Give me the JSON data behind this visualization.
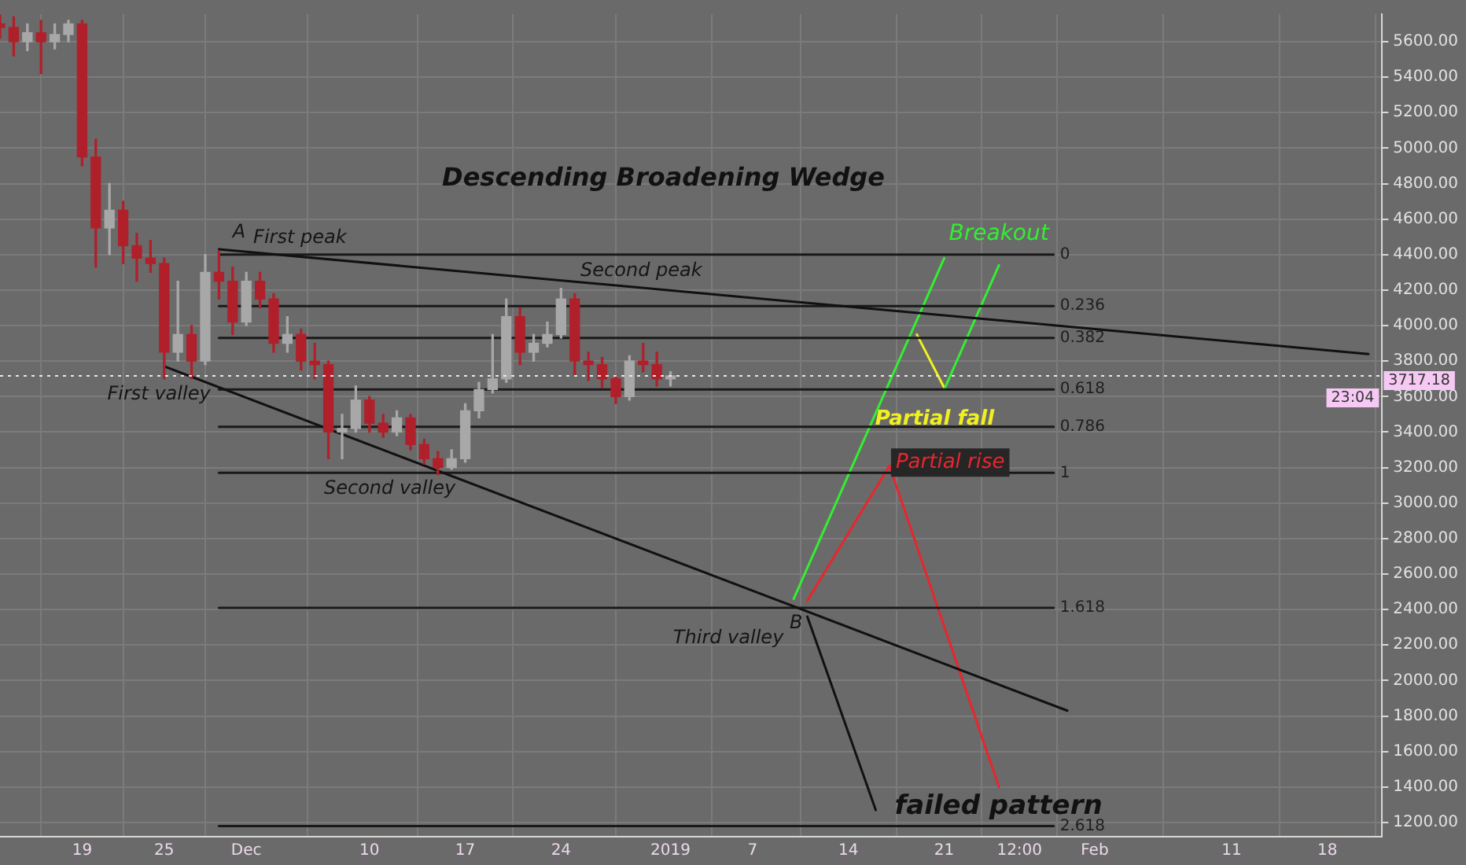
{
  "chart_data": {
    "type": "candlestick",
    "title": "Descending Broadening Wedge",
    "x": [
      "2018-11-13",
      "2018-11-14",
      "2018-11-15",
      "2018-11-16",
      "2018-11-17",
      "2018-11-18",
      "2018-11-19",
      "2018-11-20",
      "2018-11-21",
      "2018-11-22",
      "2018-11-23",
      "2018-11-24",
      "2018-11-25",
      "2018-11-26",
      "2018-11-27",
      "2018-11-28",
      "2018-11-29",
      "2018-11-30",
      "2018-12-01",
      "2018-12-02",
      "2018-12-03",
      "2018-12-04",
      "2018-12-05",
      "2018-12-06",
      "2018-12-07",
      "2018-12-08",
      "2018-12-09",
      "2018-12-10",
      "2018-12-11",
      "2018-12-12",
      "2018-12-13",
      "2018-12-14",
      "2018-12-15",
      "2018-12-16",
      "2018-12-17",
      "2018-12-18",
      "2018-12-19",
      "2018-12-20",
      "2018-12-21",
      "2018-12-22",
      "2018-12-23",
      "2018-12-24",
      "2018-12-25",
      "2018-12-26",
      "2018-12-27",
      "2018-12-28",
      "2018-12-29",
      "2018-12-30",
      "2018-12-31",
      "2019-01-01"
    ],
    "ohlc": [
      [
        5700,
        5750,
        5620,
        5680
      ],
      [
        5680,
        5740,
        5520,
        5600
      ],
      [
        5600,
        5700,
        5550,
        5650
      ],
      [
        5650,
        5720,
        5420,
        5600
      ],
      [
        5600,
        5700,
        5560,
        5640
      ],
      [
        5640,
        5720,
        5600,
        5700
      ],
      [
        5700,
        5720,
        4900,
        4950
      ],
      [
        4950,
        5050,
        4330,
        4550
      ],
      [
        4550,
        4800,
        4400,
        4650
      ],
      [
        4650,
        4700,
        4350,
        4450
      ],
      [
        4450,
        4520,
        4250,
        4380
      ],
      [
        4380,
        4480,
        4300,
        4350
      ],
      [
        4350,
        4380,
        3700,
        3850
      ],
      [
        3850,
        4250,
        3800,
        3950
      ],
      [
        3950,
        4000,
        3700,
        3800
      ],
      [
        3800,
        4400,
        3780,
        4300
      ],
      [
        4300,
        4420,
        4150,
        4250
      ],
      [
        4250,
        4330,
        3950,
        4020
      ],
      [
        4020,
        4300,
        4000,
        4250
      ],
      [
        4250,
        4300,
        4100,
        4150
      ],
      [
        4150,
        4180,
        3850,
        3900
      ],
      [
        3900,
        4050,
        3850,
        3950
      ],
      [
        3950,
        3980,
        3750,
        3800
      ],
      [
        3800,
        3900,
        3700,
        3780
      ],
      [
        3780,
        3800,
        3250,
        3400
      ],
      [
        3400,
        3500,
        3250,
        3420
      ],
      [
        3420,
        3660,
        3400,
        3580
      ],
      [
        3580,
        3600,
        3400,
        3450
      ],
      [
        3450,
        3500,
        3370,
        3400
      ],
      [
        3400,
        3520,
        3380,
        3480
      ],
      [
        3480,
        3500,
        3300,
        3330
      ],
      [
        3330,
        3360,
        3220,
        3250
      ],
      [
        3250,
        3290,
        3160,
        3200
      ],
      [
        3200,
        3300,
        3190,
        3250
      ],
      [
        3250,
        3560,
        3230,
        3520
      ],
      [
        3520,
        3680,
        3480,
        3640
      ],
      [
        3640,
        3950,
        3620,
        3700
      ],
      [
        3700,
        4150,
        3680,
        4050
      ],
      [
        4050,
        4100,
        3780,
        3850
      ],
      [
        3850,
        3950,
        3800,
        3900
      ],
      [
        3900,
        4020,
        3880,
        3950
      ],
      [
        3950,
        4210,
        3930,
        4150
      ],
      [
        4150,
        4180,
        3720,
        3800
      ],
      [
        3800,
        3850,
        3690,
        3780
      ],
      [
        3780,
        3820,
        3650,
        3700
      ],
      [
        3700,
        3720,
        3560,
        3600
      ],
      [
        3600,
        3830,
        3580,
        3800
      ],
      [
        3800,
        3900,
        3740,
        3780
      ],
      [
        3780,
        3850,
        3660,
        3700
      ],
      [
        3700,
        3740,
        3660,
        3717
      ]
    ],
    "colors": [
      "#b0202a",
      "#b0202a",
      "#a8a8a8",
      "#b0202a",
      "#a8a8a8",
      "#a8a8a8",
      "#b0202a",
      "#b0202a",
      "#a8a8a8",
      "#b0202a",
      "#b0202a",
      "#b0202a",
      "#b0202a",
      "#a8a8a8",
      "#b0202a",
      "#a8a8a8",
      "#b0202a",
      "#b0202a",
      "#a8a8a8",
      "#b0202a",
      "#b0202a",
      "#a8a8a8",
      "#b0202a",
      "#b0202a",
      "#b0202a",
      "#a8a8a8",
      "#a8a8a8",
      "#b0202a",
      "#b0202a",
      "#a8a8a8",
      "#b0202a",
      "#b0202a",
      "#b0202a",
      "#a8a8a8",
      "#a8a8a8",
      "#a8a8a8",
      "#a8a8a8",
      "#a8a8a8",
      "#b0202a",
      "#a8a8a8",
      "#a8a8a8",
      "#a8a8a8",
      "#b0202a",
      "#b0202a",
      "#b0202a",
      "#b0202a",
      "#a8a8a8",
      "#b0202a",
      "#b0202a",
      "#a8a8a8"
    ],
    "series": [
      {
        "type": "line",
        "color": "#111111",
        "x": [
          "2018-11-29",
          "2019-02-21"
        ],
        "values": [
          4430,
          3840
        ]
      },
      {
        "type": "line",
        "color": "#111111",
        "x": [
          "2018-11-25",
          "2019-01-30"
        ],
        "values": [
          3770,
          1830
        ]
      },
      {
        "type": "line",
        "color": "#1a1a1a",
        "x": [
          "2018-11-29",
          "2019-01-29"
        ],
        "values": [
          4400,
          4400
        ]
      },
      {
        "type": "line",
        "color": "#1a1a1a",
        "x": [
          "2018-11-29",
          "2019-01-29"
        ],
        "values": [
          4110,
          4110
        ]
      },
      {
        "type": "line",
        "color": "#1a1a1a",
        "x": [
          "2018-11-29",
          "2019-01-29"
        ],
        "values": [
          3930,
          3930
        ]
      },
      {
        "type": "line",
        "color": "#1a1a1a",
        "x": [
          "2018-11-29",
          "2019-01-29"
        ],
        "values": [
          3640,
          3640
        ]
      },
      {
        "type": "line",
        "color": "#1a1a1a",
        "x": [
          "2018-11-29",
          "2019-01-29"
        ],
        "values": [
          3430,
          3430
        ]
      },
      {
        "type": "line",
        "color": "#1a1a1a",
        "x": [
          "2018-11-29",
          "2019-01-29"
        ],
        "values": [
          3170,
          3170
        ]
      },
      {
        "type": "line",
        "color": "#1a1a1a",
        "x": [
          "2018-11-29",
          "2019-01-29"
        ],
        "values": [
          2410,
          2410
        ]
      },
      {
        "type": "line",
        "color": "#1a1a1a",
        "x": [
          "2018-11-29",
          "2019-01-29"
        ],
        "values": [
          1180,
          1180
        ]
      },
      {
        "type": "line",
        "color": "#33ee33",
        "x": [
          "2019-01-10",
          "2019-01-21"
        ],
        "values": [
          2460,
          4380
        ]
      },
      {
        "type": "line",
        "color": "#33ee33",
        "name": "Breakout",
        "x": [
          "2019-01-21",
          "2019-01-25"
        ],
        "values": [
          3640,
          4340
        ]
      },
      {
        "type": "line",
        "color": "#f0f020",
        "name": "Partial fall",
        "x": [
          "2019-01-19",
          "2019-01-21"
        ],
        "values": [
          3950,
          3650
        ]
      },
      {
        "type": "line",
        "color": "#e8262e",
        "name": "Partial rise",
        "x": [
          "2019-01-11",
          "2019-01-17",
          "2019-01-25"
        ],
        "values": [
          2450,
          3210,
          1400
        ]
      },
      {
        "type": "line",
        "color": "#111111",
        "name": "failed pattern",
        "x": [
          "2019-01-11",
          "2019-01-16"
        ],
        "values": [
          2360,
          1270
        ]
      }
    ],
    "annotations": [
      "A",
      "First peak",
      "First valley",
      "Second peak",
      "Second valley",
      "Third valley",
      "B",
      "23:04",
      {
        "text": "0",
        "x": "2019-01-29",
        "y": 4400
      },
      {
        "text": "0.236",
        "x": "2019-01-29",
        "y": 4110
      },
      {
        "text": "0.382",
        "x": "2019-01-29",
        "y": 3930
      },
      {
        "text": "0.618",
        "x": "2019-01-29",
        "y": 3640
      },
      {
        "text": "0.786",
        "x": "2019-01-29",
        "y": 3430
      },
      {
        "text": "1",
        "x": "2019-01-29",
        "y": 3170
      },
      {
        "text": "1.618",
        "x": "2019-01-29",
        "y": 2410
      },
      {
        "text": "2.618",
        "x": "2019-01-29",
        "y": 1180
      }
    ],
    "ref_lines": [
      {
        "axis": "y",
        "value": 3717.18,
        "label": "3717.18",
        "color": "#e8e8e8",
        "line_style": "dotted"
      }
    ],
    "xlim": [
      "2018-11-13",
      "2019-02-22"
    ],
    "xticks": [
      {
        "value": "2018-11-19",
        "label": "19"
      },
      {
        "value": "2018-11-25",
        "label": "25"
      },
      {
        "value": "2018-12-01",
        "label": "Dec"
      },
      {
        "value": "2018-12-10",
        "label": "10"
      },
      {
        "value": "2018-12-17",
        "label": "17"
      },
      {
        "value": "2018-12-24",
        "label": "24"
      },
      {
        "value": "2019-01-01",
        "label": "2019"
      },
      {
        "value": "2019-01-07",
        "label": "7"
      },
      {
        "value": "2019-01-14",
        "label": "14"
      },
      {
        "value": "2019-01-21",
        "label": "21"
      },
      {
        "value": "2019-01-26T12:00",
        "label": "12:00"
      },
      {
        "value": "2019-02-01",
        "label": "Feb"
      },
      {
        "value": "2019-02-11",
        "label": "11"
      },
      {
        "value": "2019-02-18",
        "label": "18"
      }
    ],
    "ylim": [
      1120,
      5755
    ],
    "yticks": [
      {
        "value": 1200,
        "label": "1200.00"
      },
      {
        "value": 1400,
        "label": "1400.00"
      },
      {
        "value": 1600,
        "label": "1600.00"
      },
      {
        "value": 1800,
        "label": "1800.00"
      },
      {
        "value": 2000,
        "label": "2000.00"
      },
      {
        "value": 2200,
        "label": "2200.00"
      },
      {
        "value": 2400,
        "label": "2400.00"
      },
      {
        "value": 2600,
        "label": "2600.00"
      },
      {
        "value": 2800,
        "label": "2800.00"
      },
      {
        "value": 3000,
        "label": "3000.00"
      },
      {
        "value": 3200,
        "label": "3200.00"
      },
      {
        "value": 3400,
        "label": "3400.00"
      },
      {
        "value": 3600,
        "label": "3600.00"
      },
      {
        "value": 3800,
        "label": "3800.00"
      },
      {
        "value": 4000,
        "label": "4000.00"
      },
      {
        "value": 4200,
        "label": "4200.00"
      },
      {
        "value": 4400,
        "label": "4400.00"
      },
      {
        "value": 4600,
        "label": "4600.00"
      },
      {
        "value": 4800,
        "label": "4800.00"
      },
      {
        "value": 5000,
        "label": "5000.00"
      },
      {
        "value": 5200,
        "label": "5200.00"
      },
      {
        "value": 5400,
        "label": "5400.00"
      },
      {
        "value": 5600,
        "label": "5600.00"
      }
    ],
    "grid": true,
    "legend": false,
    "marker": "none"
  }
}
